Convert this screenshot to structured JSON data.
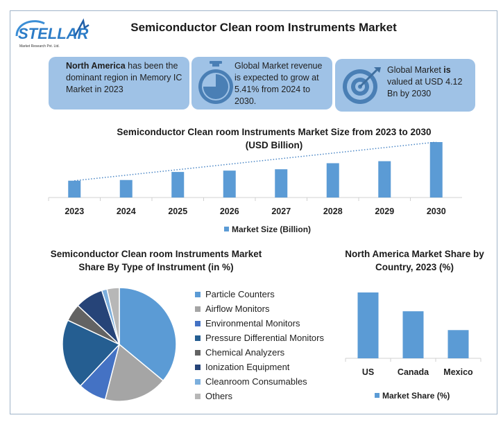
{
  "header": {
    "logo_text": "STELLAR",
    "logo_subtext": "Market Research Pvt. Ltd.",
    "title": "Semiconductor Clean room Instruments Market"
  },
  "cards": [
    {
      "bold": "North America",
      "text": " has been the dominant region in Memory IC Market in 2023",
      "icon": "none"
    },
    {
      "bold": "",
      "text": "Global Market revenue is expected to grow at 5.41% from 2024 to 2030.",
      "icon": "stopwatch-icon"
    },
    {
      "pre": "Global Market ",
      "bold": "is",
      "text": " valued at USD 4.12 Bn by 2030",
      "icon": "target-icon"
    }
  ],
  "colors": {
    "card_bg": "#9fc2e6",
    "bar": "#5b9bd5",
    "trend": "#4a86c5"
  },
  "chart_data": [
    {
      "type": "bar",
      "title": "Semiconductor Clean room Instruments Market Size from 2023 to 2030",
      "subtitle": "(USD Billion)",
      "categories": [
        "2023",
        "2024",
        "2025",
        "2026",
        "2027",
        "2028",
        "2029",
        "2030"
      ],
      "series": [
        {
          "name": "Market Size (Billion)",
          "values": [
            1.25,
            1.3,
            1.9,
            2.0,
            2.1,
            2.55,
            2.7,
            4.12
          ]
        }
      ],
      "ylim": [
        0,
        4.12
      ],
      "trendline": "linear dotted",
      "legend": "bottom"
    },
    {
      "type": "pie",
      "title": "Semiconductor Clean room Instruments Market Share By Type of Instrument (in %)",
      "labels": [
        "Particle Counters",
        "Airflow Monitors",
        "Environmental Monitors",
        "Pressure Differential Monitors",
        "Chemical Analyzers",
        "Ionization Equipment",
        "Cleanroom Consumables",
        "Others"
      ],
      "values": [
        36,
        18,
        8,
        20,
        5,
        8,
        1.5,
        3.5
      ],
      "colors": [
        "#5b9bd5",
        "#a5a5a5",
        "#4472c4",
        "#255e91",
        "#636363",
        "#264478",
        "#7cafdd",
        "#b7b7b7"
      ],
      "legend": "right"
    },
    {
      "type": "bar",
      "title": "North America Market Share by Country, 2023 (%)",
      "categories": [
        "US",
        "Canada",
        "Mexico"
      ],
      "series": [
        {
          "name": "Market Share (%)",
          "values": [
            70,
            50,
            30
          ]
        }
      ],
      "ylim": [
        0,
        70
      ],
      "legend": "bottom"
    }
  ]
}
